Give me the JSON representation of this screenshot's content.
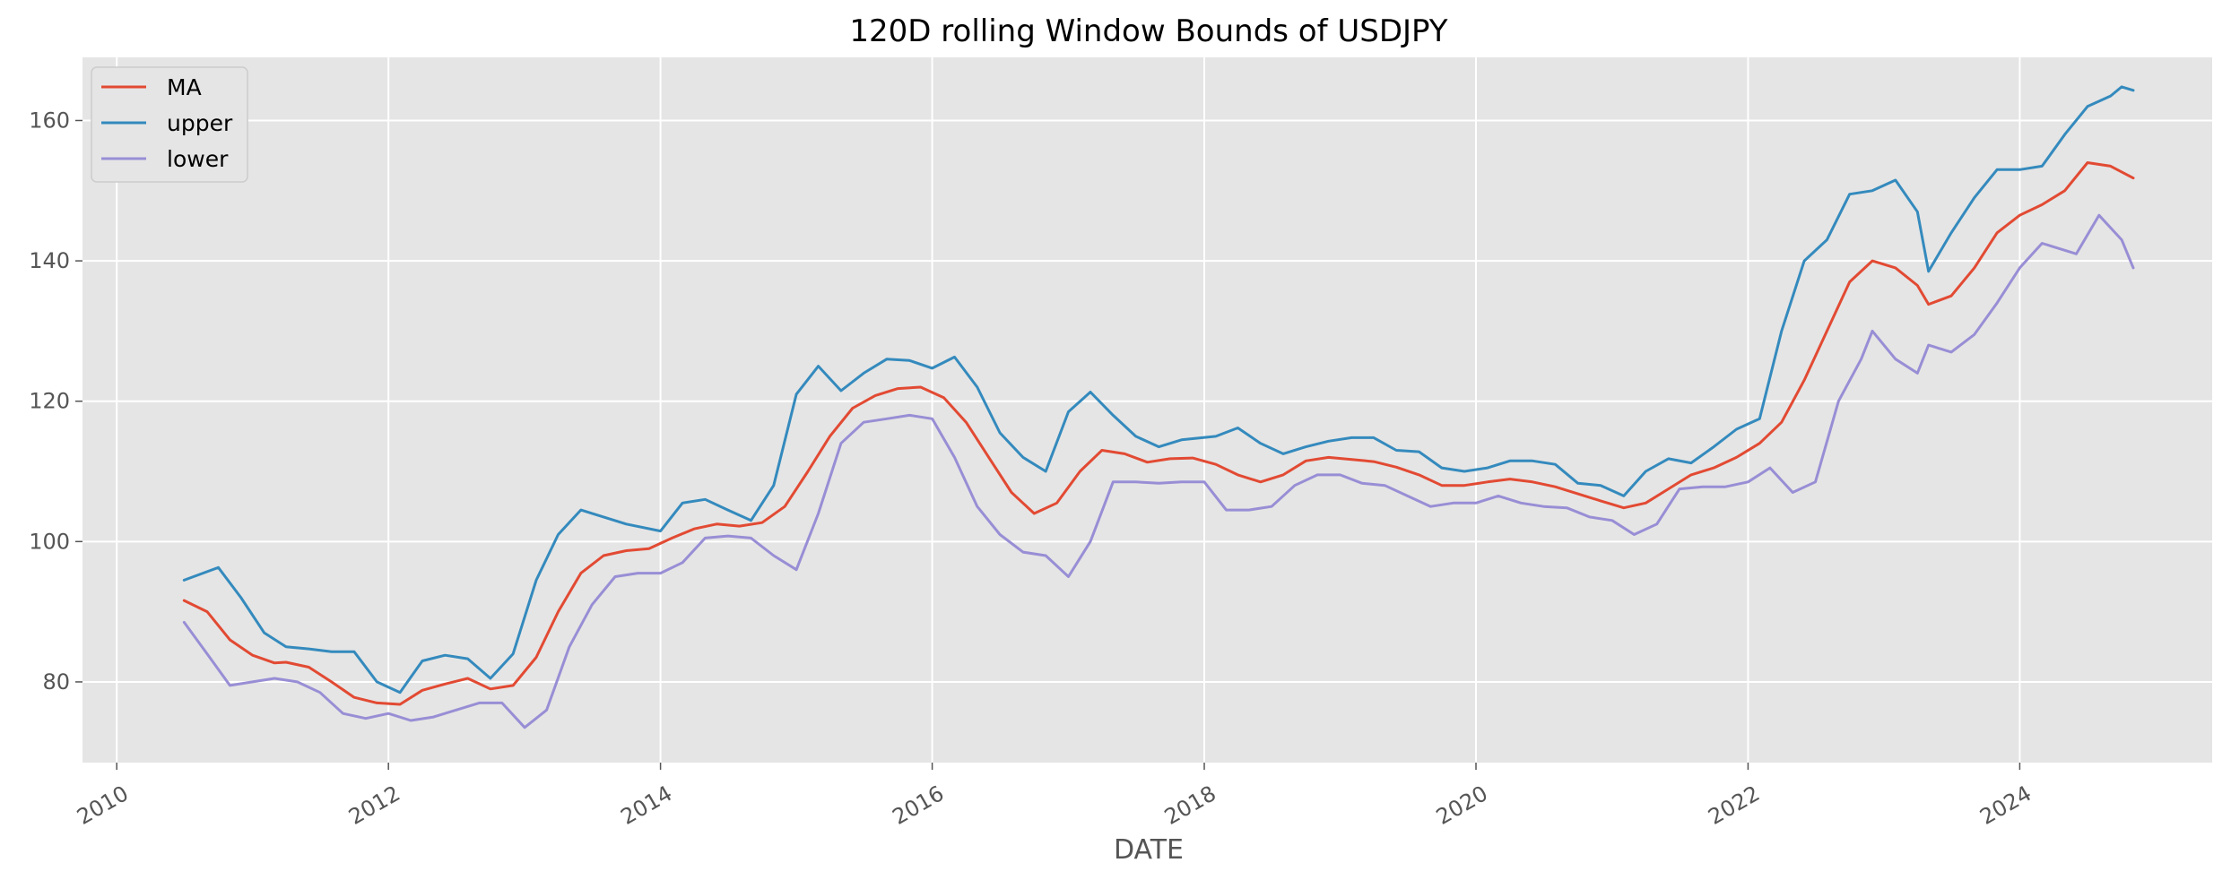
{
  "chart_data": {
    "type": "line",
    "title": "120D rolling Window Bounds of USDJPY",
    "xlabel": "DATE",
    "ylabel": "",
    "x_ticks": [
      "2010",
      "2012",
      "2014",
      "2016",
      "2018",
      "2020",
      "2022",
      "2024"
    ],
    "y_ticks": [
      "80",
      "100",
      "120",
      "140",
      "160"
    ],
    "xlim": [
      "2009-10-01",
      "2025-06-01"
    ],
    "ylim": [
      68.5,
      169
    ],
    "grid": true,
    "legend": "top-left",
    "series": [
      {
        "name": "MA",
        "color": "#E24A33",
        "points": [
          [
            "2010-07-01",
            91.6
          ],
          [
            "2010-09-01",
            90.0
          ],
          [
            "2010-11-01",
            86.0
          ],
          [
            "2011-01-01",
            83.8
          ],
          [
            "2011-03-01",
            82.7
          ],
          [
            "2011-04-01",
            82.8
          ],
          [
            "2011-06-01",
            82.1
          ],
          [
            "2011-08-01",
            80.0
          ],
          [
            "2011-10-01",
            77.8
          ],
          [
            "2011-12-01",
            77.0
          ],
          [
            "2012-02-01",
            76.8
          ],
          [
            "2012-04-01",
            78.8
          ],
          [
            "2012-06-01",
            79.7
          ],
          [
            "2012-08-01",
            80.5
          ],
          [
            "2012-10-01",
            79.0
          ],
          [
            "2012-12-01",
            79.5
          ],
          [
            "2013-02-01",
            83.5
          ],
          [
            "2013-04-01",
            90.0
          ],
          [
            "2013-06-01",
            95.5
          ],
          [
            "2013-08-01",
            98.0
          ],
          [
            "2013-10-01",
            98.7
          ],
          [
            "2013-12-01",
            99.0
          ],
          [
            "2014-02-01",
            100.5
          ],
          [
            "2014-04-01",
            101.8
          ],
          [
            "2014-06-01",
            102.5
          ],
          [
            "2014-08-01",
            102.2
          ],
          [
            "2014-10-01",
            102.7
          ],
          [
            "2014-12-01",
            105.0
          ],
          [
            "2015-02-01",
            110.0
          ],
          [
            "2015-04-01",
            115.0
          ],
          [
            "2015-06-01",
            119.0
          ],
          [
            "2015-08-01",
            120.8
          ],
          [
            "2015-10-01",
            121.8
          ],
          [
            "2015-12-01",
            122.0
          ],
          [
            "2016-02-01",
            120.5
          ],
          [
            "2016-04-01",
            117.0
          ],
          [
            "2016-06-01",
            112.0
          ],
          [
            "2016-08-01",
            107.0
          ],
          [
            "2016-10-01",
            104.0
          ],
          [
            "2016-12-01",
            105.5
          ],
          [
            "2017-02-01",
            110.0
          ],
          [
            "2017-04-01",
            113.0
          ],
          [
            "2017-06-01",
            112.5
          ],
          [
            "2017-08-01",
            111.3
          ],
          [
            "2017-10-01",
            111.8
          ],
          [
            "2017-12-01",
            111.9
          ],
          [
            "2018-02-01",
            111.0
          ],
          [
            "2018-04-01",
            109.5
          ],
          [
            "2018-06-01",
            108.5
          ],
          [
            "2018-08-01",
            109.5
          ],
          [
            "2018-10-01",
            111.5
          ],
          [
            "2018-12-01",
            112.0
          ],
          [
            "2019-02-01",
            111.7
          ],
          [
            "2019-04-01",
            111.4
          ],
          [
            "2019-06-01",
            110.6
          ],
          [
            "2019-08-01",
            109.5
          ],
          [
            "2019-10-01",
            108.0
          ],
          [
            "2019-12-01",
            108.0
          ],
          [
            "2020-02-01",
            108.5
          ],
          [
            "2020-04-01",
            108.9
          ],
          [
            "2020-06-01",
            108.5
          ],
          [
            "2020-08-01",
            107.8
          ],
          [
            "2020-10-01",
            106.8
          ],
          [
            "2020-12-01",
            105.8
          ],
          [
            "2021-02-01",
            104.8
          ],
          [
            "2021-04-01",
            105.5
          ],
          [
            "2021-06-01",
            107.5
          ],
          [
            "2021-08-01",
            109.5
          ],
          [
            "2021-10-01",
            110.5
          ],
          [
            "2021-12-01",
            112.0
          ],
          [
            "2022-02-01",
            114.0
          ],
          [
            "2022-04-01",
            117.0
          ],
          [
            "2022-06-01",
            123.0
          ],
          [
            "2022-08-01",
            130.0
          ],
          [
            "2022-10-01",
            137.0
          ],
          [
            "2022-12-01",
            140.0
          ],
          [
            "2023-02-01",
            139.0
          ],
          [
            "2023-04-01",
            136.5
          ],
          [
            "2023-05-01",
            133.8
          ],
          [
            "2023-07-01",
            135.0
          ],
          [
            "2023-09-01",
            139.0
          ],
          [
            "2023-11-01",
            144.0
          ],
          [
            "2024-01-01",
            146.5
          ],
          [
            "2024-03-01",
            148.0
          ],
          [
            "2024-05-01",
            150.0
          ],
          [
            "2024-07-01",
            154.0
          ],
          [
            "2024-09-01",
            153.5
          ],
          [
            "2024-11-01",
            151.8
          ]
        ]
      },
      {
        "name": "upper",
        "color": "#348ABD",
        "points": [
          [
            "2010-07-01",
            94.5
          ],
          [
            "2010-10-01",
            96.3
          ],
          [
            "2010-12-01",
            92.0
          ],
          [
            "2011-02-01",
            87.0
          ],
          [
            "2011-04-01",
            85.0
          ],
          [
            "2011-06-01",
            84.7
          ],
          [
            "2011-08-01",
            84.3
          ],
          [
            "2011-10-01",
            84.3
          ],
          [
            "2011-12-01",
            80.0
          ],
          [
            "2012-02-01",
            78.5
          ],
          [
            "2012-04-01",
            83.0
          ],
          [
            "2012-06-01",
            83.8
          ],
          [
            "2012-08-01",
            83.3
          ],
          [
            "2012-10-01",
            80.5
          ],
          [
            "2012-12-01",
            84.0
          ],
          [
            "2013-02-01",
            94.5
          ],
          [
            "2013-04-01",
            101.0
          ],
          [
            "2013-06-01",
            104.5
          ],
          [
            "2013-08-01",
            103.5
          ],
          [
            "2013-10-01",
            102.5
          ],
          [
            "2014-01-01",
            101.5
          ],
          [
            "2014-03-01",
            105.5
          ],
          [
            "2014-05-01",
            106.0
          ],
          [
            "2014-07-01",
            104.5
          ],
          [
            "2014-09-01",
            103.0
          ],
          [
            "2014-11-01",
            108.0
          ],
          [
            "2015-01-01",
            121.0
          ],
          [
            "2015-03-01",
            125.0
          ],
          [
            "2015-05-01",
            121.5
          ],
          [
            "2015-07-01",
            124.0
          ],
          [
            "2015-09-01",
            126.0
          ],
          [
            "2015-11-01",
            125.8
          ],
          [
            "2016-01-01",
            124.7
          ],
          [
            "2016-03-01",
            126.3
          ],
          [
            "2016-05-01",
            122.0
          ],
          [
            "2016-07-01",
            115.5
          ],
          [
            "2016-09-01",
            112.0
          ],
          [
            "2016-11-01",
            110.0
          ],
          [
            "2017-01-01",
            118.5
          ],
          [
            "2017-03-01",
            121.3
          ],
          [
            "2017-05-01",
            118.0
          ],
          [
            "2017-07-01",
            115.0
          ],
          [
            "2017-09-01",
            113.5
          ],
          [
            "2017-11-01",
            114.5
          ],
          [
            "2018-02-01",
            115.0
          ],
          [
            "2018-04-01",
            116.2
          ],
          [
            "2018-06-01",
            114.0
          ],
          [
            "2018-08-01",
            112.5
          ],
          [
            "2018-10-01",
            113.5
          ],
          [
            "2018-12-01",
            114.3
          ],
          [
            "2019-02-01",
            114.8
          ],
          [
            "2019-04-01",
            114.8
          ],
          [
            "2019-06-01",
            113.0
          ],
          [
            "2019-08-01",
            112.8
          ],
          [
            "2019-10-01",
            110.5
          ],
          [
            "2019-12-01",
            110.0
          ],
          [
            "2020-02-01",
            110.5
          ],
          [
            "2020-04-01",
            111.5
          ],
          [
            "2020-06-01",
            111.5
          ],
          [
            "2020-08-01",
            111.0
          ],
          [
            "2020-10-01",
            108.3
          ],
          [
            "2020-12-01",
            108.0
          ],
          [
            "2021-02-01",
            106.5
          ],
          [
            "2021-04-01",
            110.0
          ],
          [
            "2021-06-01",
            111.8
          ],
          [
            "2021-08-01",
            111.2
          ],
          [
            "2021-10-01",
            113.5
          ],
          [
            "2021-12-01",
            116.0
          ],
          [
            "2022-02-01",
            117.5
          ],
          [
            "2022-04-01",
            130.0
          ],
          [
            "2022-06-01",
            140.0
          ],
          [
            "2022-08-01",
            143.0
          ],
          [
            "2022-10-01",
            149.5
          ],
          [
            "2022-12-01",
            150.0
          ],
          [
            "2023-02-01",
            151.5
          ],
          [
            "2023-04-01",
            147.0
          ],
          [
            "2023-05-01",
            138.5
          ],
          [
            "2023-07-01",
            144.0
          ],
          [
            "2023-09-01",
            149.0
          ],
          [
            "2023-11-01",
            153.0
          ],
          [
            "2024-01-01",
            153.0
          ],
          [
            "2024-03-01",
            153.5
          ],
          [
            "2024-05-01",
            158.0
          ],
          [
            "2024-07-01",
            162.0
          ],
          [
            "2024-09-01",
            163.5
          ],
          [
            "2024-10-01",
            164.8
          ],
          [
            "2024-11-01",
            164.3
          ]
        ]
      },
      {
        "name": "lower",
        "color": "#988ED5",
        "points": [
          [
            "2010-07-01",
            88.5
          ],
          [
            "2010-09-01",
            84.0
          ],
          [
            "2010-11-01",
            79.5
          ],
          [
            "2011-01-01",
            80.0
          ],
          [
            "2011-03-01",
            80.5
          ],
          [
            "2011-05-01",
            80.0
          ],
          [
            "2011-07-01",
            78.5
          ],
          [
            "2011-09-01",
            75.5
          ],
          [
            "2011-11-01",
            74.8
          ],
          [
            "2012-01-01",
            75.5
          ],
          [
            "2012-03-01",
            74.5
          ],
          [
            "2012-05-01",
            75.0
          ],
          [
            "2012-07-01",
            76.0
          ],
          [
            "2012-09-01",
            77.0
          ],
          [
            "2012-11-01",
            77.0
          ],
          [
            "2013-01-01",
            73.5
          ],
          [
            "2013-03-01",
            76.0
          ],
          [
            "2013-05-01",
            85.0
          ],
          [
            "2013-07-01",
            91.0
          ],
          [
            "2013-09-01",
            95.0
          ],
          [
            "2013-11-01",
            95.5
          ],
          [
            "2014-01-01",
            95.5
          ],
          [
            "2014-03-01",
            97.0
          ],
          [
            "2014-05-01",
            100.5
          ],
          [
            "2014-07-01",
            100.8
          ],
          [
            "2014-09-01",
            100.5
          ],
          [
            "2014-11-01",
            98.0
          ],
          [
            "2015-01-01",
            96.0
          ],
          [
            "2015-03-01",
            104.0
          ],
          [
            "2015-05-01",
            114.0
          ],
          [
            "2015-07-01",
            117.0
          ],
          [
            "2015-09-01",
            117.5
          ],
          [
            "2015-11-01",
            118.0
          ],
          [
            "2016-01-01",
            117.5
          ],
          [
            "2016-03-01",
            112.0
          ],
          [
            "2016-05-01",
            105.0
          ],
          [
            "2016-07-01",
            101.0
          ],
          [
            "2016-09-01",
            98.5
          ],
          [
            "2016-11-01",
            98.0
          ],
          [
            "2017-01-01",
            95.0
          ],
          [
            "2017-03-01",
            100.0
          ],
          [
            "2017-05-01",
            108.5
          ],
          [
            "2017-07-01",
            108.5
          ],
          [
            "2017-09-01",
            108.3
          ],
          [
            "2017-11-01",
            108.5
          ],
          [
            "2018-01-01",
            108.5
          ],
          [
            "2018-03-01",
            104.5
          ],
          [
            "2018-05-01",
            104.5
          ],
          [
            "2018-07-01",
            105.0
          ],
          [
            "2018-09-01",
            108.0
          ],
          [
            "2018-11-01",
            109.5
          ],
          [
            "2019-01-01",
            109.5
          ],
          [
            "2019-03-01",
            108.3
          ],
          [
            "2019-05-01",
            108.0
          ],
          [
            "2019-07-01",
            106.5
          ],
          [
            "2019-09-01",
            105.0
          ],
          [
            "2019-11-01",
            105.5
          ],
          [
            "2020-01-01",
            105.5
          ],
          [
            "2020-03-01",
            106.5
          ],
          [
            "2020-05-01",
            105.5
          ],
          [
            "2020-07-01",
            105.0
          ],
          [
            "2020-09-01",
            104.8
          ],
          [
            "2020-11-01",
            103.5
          ],
          [
            "2021-01-01",
            103.0
          ],
          [
            "2021-03-01",
            101.0
          ],
          [
            "2021-05-01",
            102.5
          ],
          [
            "2021-07-01",
            107.5
          ],
          [
            "2021-09-01",
            107.8
          ],
          [
            "2021-11-01",
            107.8
          ],
          [
            "2022-01-01",
            108.5
          ],
          [
            "2022-03-01",
            110.5
          ],
          [
            "2022-05-01",
            107.0
          ],
          [
            "2022-07-01",
            108.5
          ],
          [
            "2022-09-01",
            120.0
          ],
          [
            "2022-11-01",
            126.0
          ],
          [
            "2022-12-01",
            130.0
          ],
          [
            "2023-02-01",
            126.0
          ],
          [
            "2023-04-01",
            124.0
          ],
          [
            "2023-05-01",
            128.0
          ],
          [
            "2023-07-01",
            127.0
          ],
          [
            "2023-09-01",
            129.5
          ],
          [
            "2023-11-01",
            134.0
          ],
          [
            "2024-01-01",
            139.0
          ],
          [
            "2024-03-01",
            142.5
          ],
          [
            "2024-05-01",
            141.5
          ],
          [
            "2024-06-01",
            141.0
          ],
          [
            "2024-08-01",
            146.5
          ],
          [
            "2024-10-01",
            143.0
          ],
          [
            "2024-11-01",
            139.0
          ]
        ]
      }
    ]
  }
}
